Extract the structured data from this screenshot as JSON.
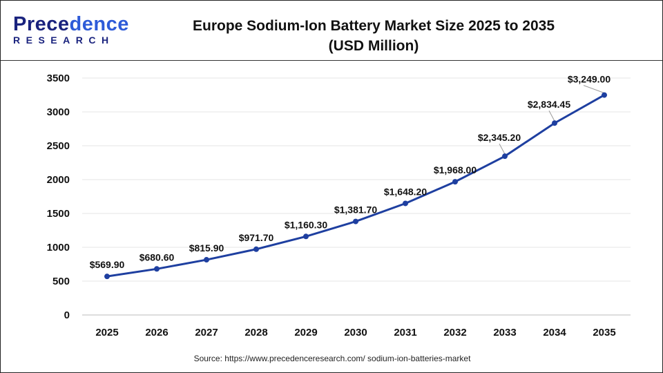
{
  "logo": {
    "text_main": "Precedence",
    "text_sub": "RESEARCH"
  },
  "title_line1": "Europe Sodium-Ion Battery Market Size 2025 to 2035",
  "title_line2": "(USD Million)",
  "source": "Source: https://www.precedenceresearch.com/ sodium-ion-batteries-market",
  "chart_data": {
    "type": "line",
    "title": "Europe Sodium-Ion Battery Market Size 2025 to 2035 (USD Million)",
    "categories": [
      "2025",
      "2026",
      "2027",
      "2028",
      "2029",
      "2030",
      "2031",
      "2032",
      "2033",
      "2034",
      "2035"
    ],
    "values": [
      569.9,
      680.6,
      815.9,
      971.7,
      1160.3,
      1381.7,
      1648.2,
      1968.0,
      2345.2,
      2834.45,
      3249.0
    ],
    "labels": [
      "$569.90",
      "$680.60",
      "$815.90",
      "$971.70",
      "$1,160.30",
      "$1,381.70",
      "$1,648.20",
      "$1,968.00",
      "$2,345.20",
      "$2,834.45",
      "$3,249.00"
    ],
    "yticks": [
      0,
      500,
      1000,
      1500,
      2000,
      2500,
      3000,
      3500
    ],
    "ylim": [
      0,
      3500
    ],
    "grid": true,
    "line_color": "#1e3fa0",
    "xlabel": "",
    "ylabel": ""
  }
}
